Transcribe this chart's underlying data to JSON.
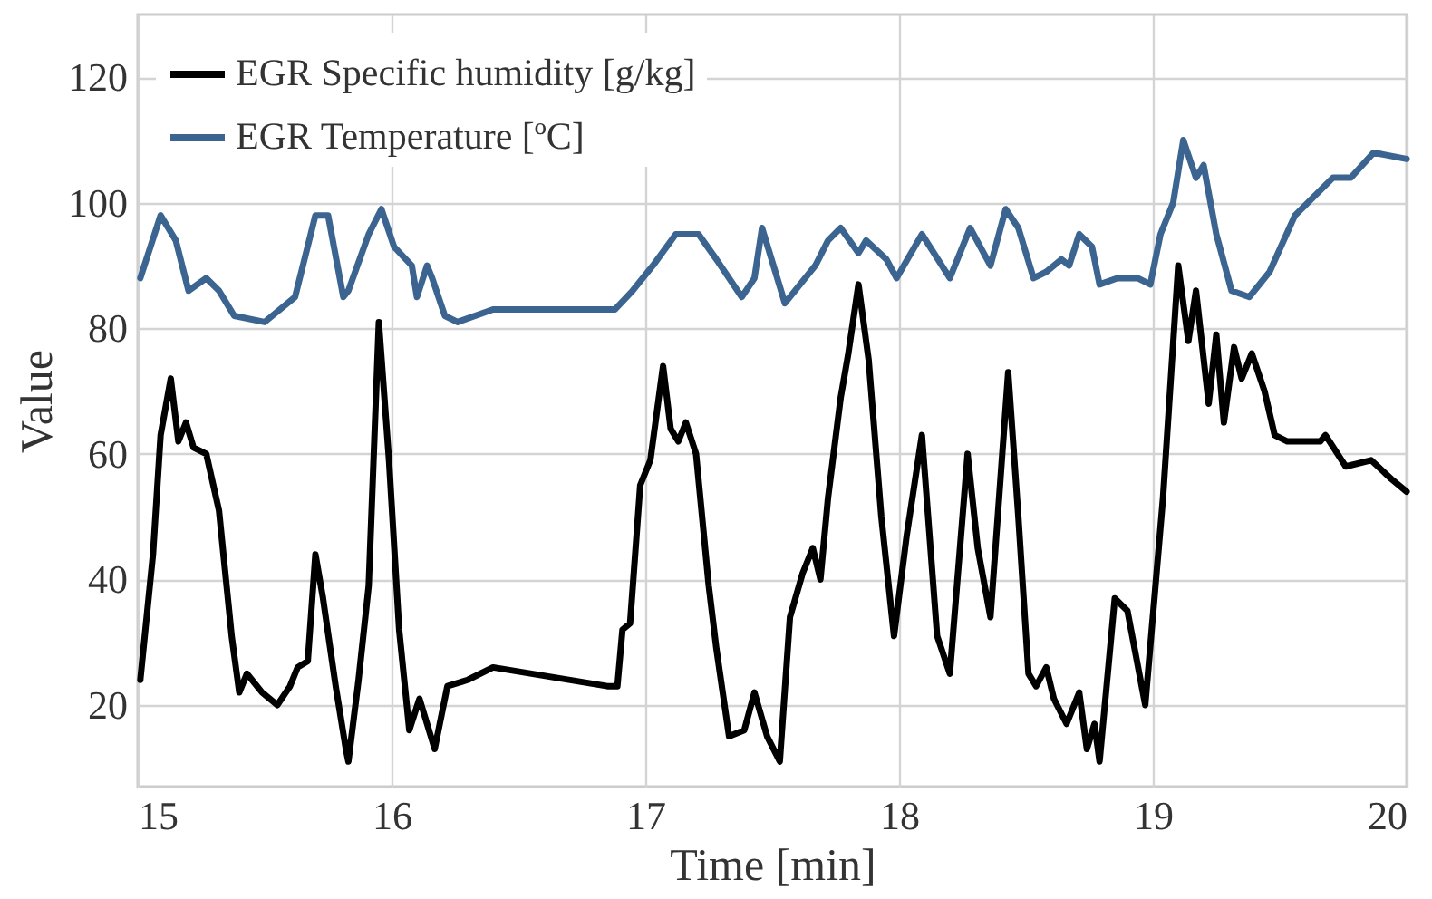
{
  "chart_data": {
    "type": "line",
    "xlabel": "Time [min]",
    "ylabel": "Value",
    "xlim": [
      15,
      20
    ],
    "xticks": [
      15,
      16,
      17,
      18,
      19,
      20
    ],
    "ylim": [
      7,
      130
    ],
    "yticks": [
      20,
      40,
      60,
      80,
      100,
      120
    ],
    "grid": true,
    "legend": "top left",
    "line_style": "solid",
    "marker": "none",
    "series": [
      {
        "name": "EGR Specific humidity [g/kg]",
        "color": "#000000",
        "x": [
          15.01,
          15.06,
          15.09,
          15.13,
          15.16,
          15.19,
          15.22,
          15.27,
          15.32,
          15.37,
          15.4,
          15.43,
          15.49,
          15.55,
          15.6,
          15.63,
          15.67,
          15.7,
          15.73,
          15.78,
          15.82,
          15.83,
          15.87,
          15.91,
          15.95,
          15.99,
          16.03,
          16.07,
          16.11,
          16.14,
          16.17,
          16.22,
          16.3,
          16.4,
          16.85,
          16.89,
          16.91,
          16.94,
          16.98,
          17.02,
          17.07,
          17.1,
          17.13,
          17.16,
          17.2,
          17.25,
          17.28,
          17.33,
          17.39,
          17.43,
          17.48,
          17.53,
          17.57,
          17.62,
          17.66,
          17.69,
          17.72,
          17.77,
          17.8,
          17.84,
          17.88,
          17.93,
          17.98,
          18.03,
          18.09,
          18.15,
          18.2,
          18.27,
          18.31,
          18.36,
          18.43,
          18.47,
          18.51,
          18.54,
          18.58,
          18.61,
          18.66,
          18.71,
          18.74,
          18.77,
          18.79,
          18.85,
          18.9,
          18.97,
          19.04,
          19.1,
          19.14,
          19.17,
          19.22,
          19.25,
          19.28,
          19.32,
          19.35,
          19.39,
          19.44,
          19.48,
          19.53,
          19.66,
          19.68,
          19.76,
          19.86,
          19.94,
          20.0
        ],
        "values": [
          24,
          44,
          63,
          72,
          62,
          65,
          61,
          60,
          51,
          31,
          22,
          25,
          22,
          20,
          23,
          26,
          27,
          44,
          37,
          23,
          13,
          11,
          24,
          39,
          81,
          59,
          32,
          16,
          21,
          17,
          13,
          23,
          24,
          26,
          23,
          23,
          32,
          33,
          55,
          59,
          74,
          64,
          62,
          65,
          60,
          39,
          29,
          15,
          16,
          22,
          15,
          11,
          34,
          41,
          45,
          40,
          53,
          69,
          76,
          87,
          75,
          50,
          31,
          47,
          63,
          31,
          25,
          60,
          45,
          34,
          73,
          50,
          25,
          23,
          26,
          21,
          17,
          22,
          13,
          17,
          11,
          37,
          35,
          20,
          53,
          90,
          78,
          86,
          68,
          79,
          65,
          77,
          72,
          76,
          70,
          63,
          62,
          62,
          63,
          58,
          59,
          56,
          54
        ]
      },
      {
        "name": "EGR Temperature [ºC]",
        "color": "#3b6590",
        "x": [
          15.01,
          15.09,
          15.15,
          15.2,
          15.27,
          15.32,
          15.38,
          15.5,
          15.62,
          15.7,
          15.75,
          15.81,
          15.83,
          15.91,
          15.96,
          16.01,
          16.08,
          16.1,
          16.14,
          16.16,
          16.21,
          16.26,
          16.4,
          16.88,
          16.95,
          17.03,
          17.12,
          17.21,
          17.28,
          17.38,
          17.43,
          17.46,
          17.55,
          17.67,
          17.72,
          17.77,
          17.84,
          17.87,
          17.95,
          17.99,
          18.09,
          18.2,
          18.28,
          18.36,
          18.42,
          18.47,
          18.53,
          18.58,
          18.64,
          18.67,
          18.71,
          18.76,
          18.79,
          18.86,
          18.94,
          18.99,
          19.03,
          19.08,
          19.12,
          19.17,
          19.2,
          19.25,
          19.31,
          19.38,
          19.46,
          19.56,
          19.71,
          19.78,
          19.87,
          20.0
        ],
        "values": [
          88,
          98,
          94,
          86,
          88,
          86,
          82,
          81,
          85,
          98,
          98,
          85,
          86,
          95,
          99,
          93,
          90,
          85,
          90,
          88,
          82,
          81,
          83,
          83,
          86,
          90,
          95,
          95,
          91,
          85,
          88,
          96,
          84,
          90,
          94,
          96,
          92,
          94,
          91,
          88,
          95,
          88,
          96,
          90,
          99,
          96,
          88,
          89,
          91,
          90,
          95,
          93,
          87,
          88,
          88,
          87,
          95,
          100,
          110,
          104,
          106,
          95,
          86,
          85,
          89,
          98,
          104,
          104,
          108,
          107
        ]
      }
    ]
  }
}
